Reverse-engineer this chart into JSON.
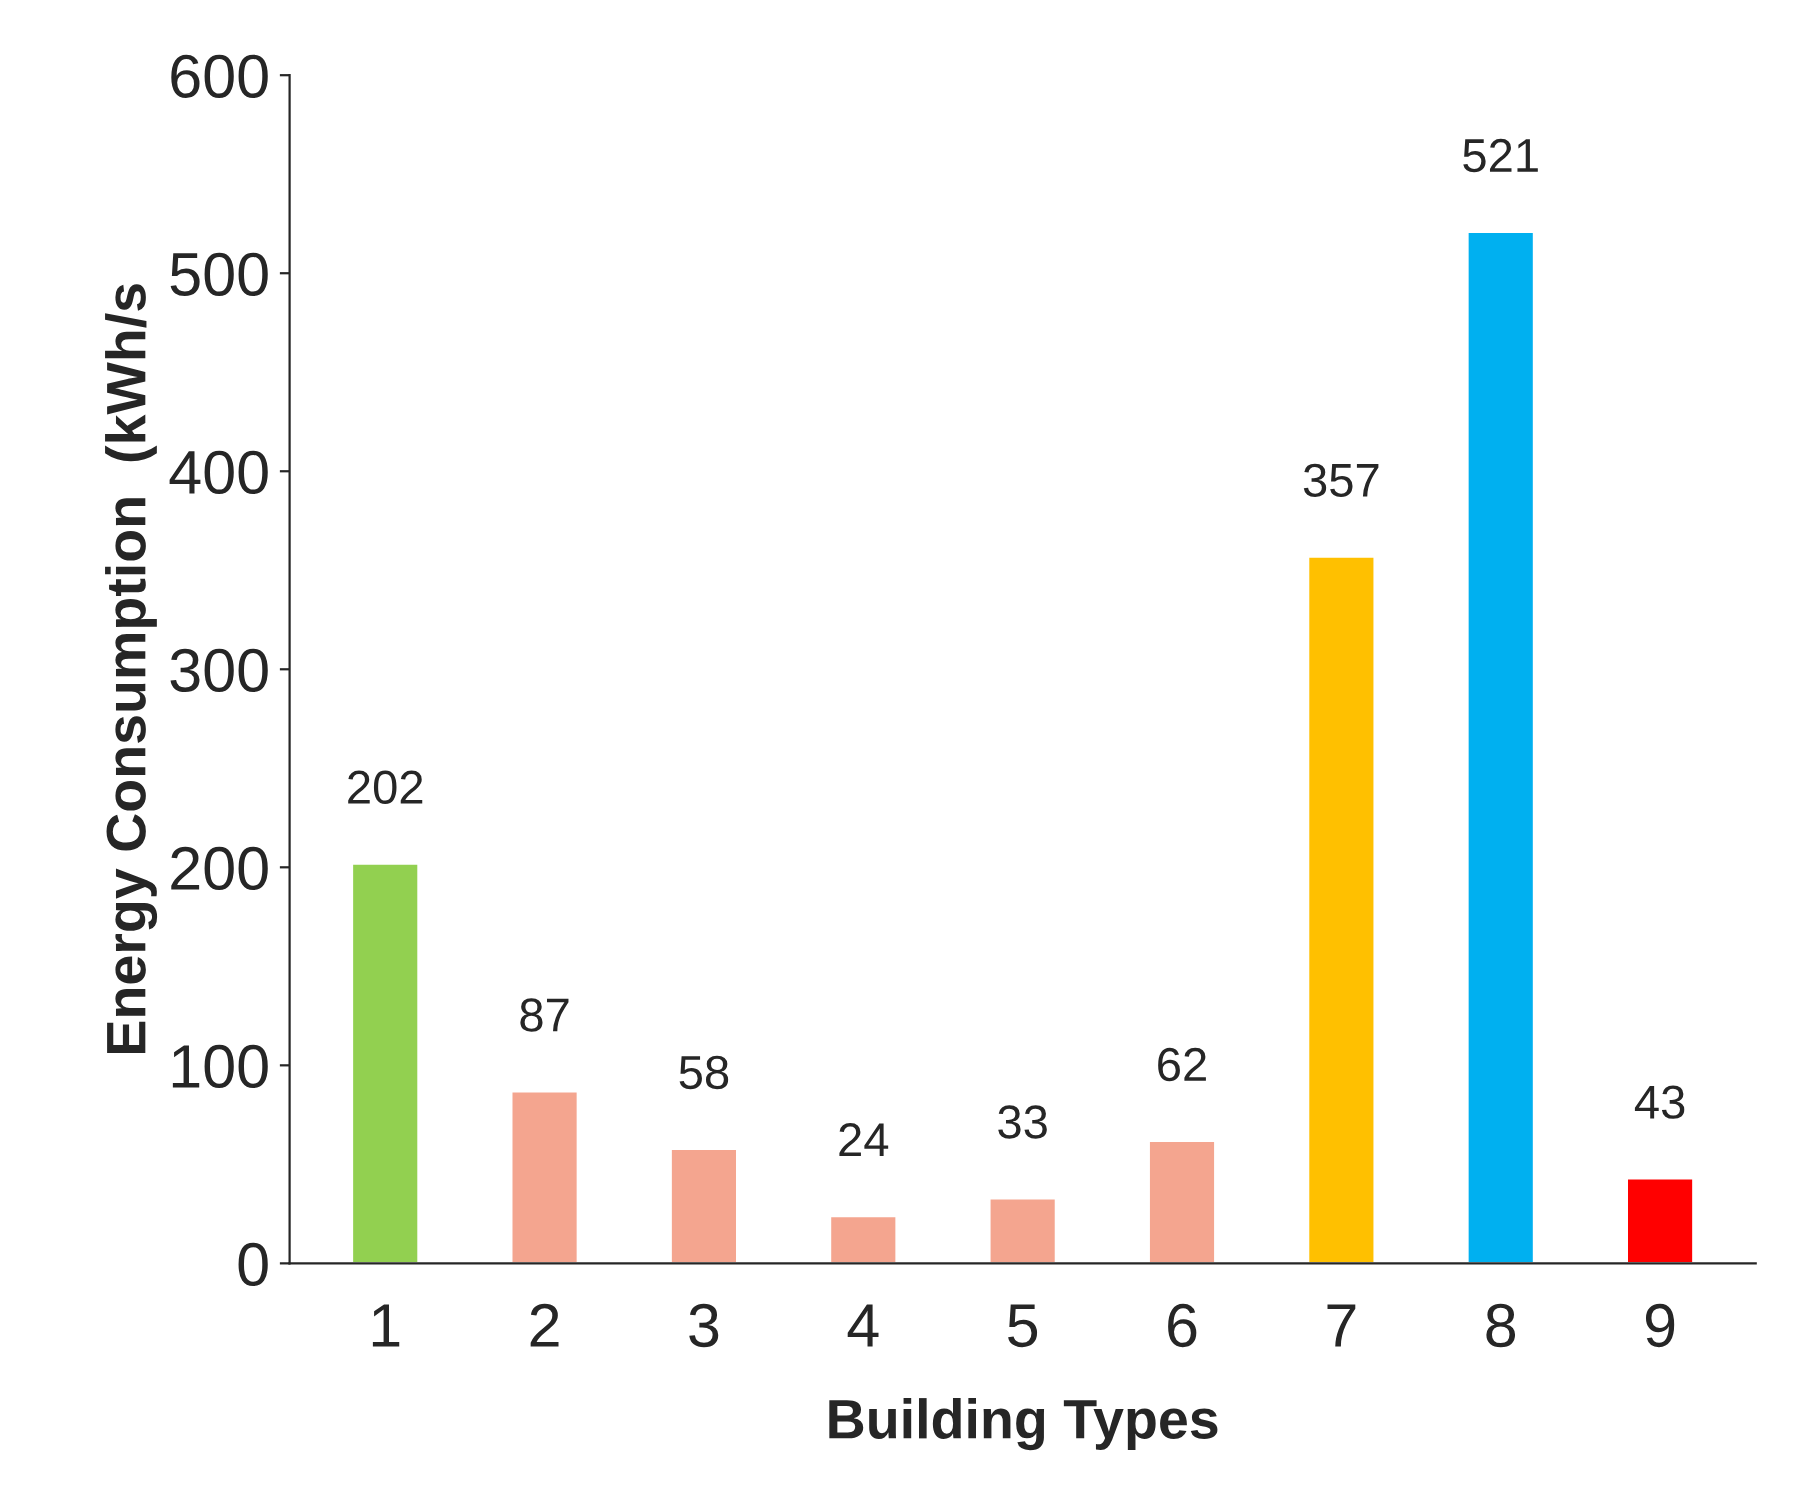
{
  "chart_data": {
    "type": "bar",
    "xlabel": "Building Types",
    "ylabel": "Energy Consumption  (kWh/s",
    "categories": [
      "1",
      "2",
      "3",
      "4",
      "5",
      "6",
      "7",
      "8",
      "9"
    ],
    "values": [
      202,
      87,
      58,
      24,
      33,
      62,
      357,
      521,
      43
    ],
    "colors": [
      "#92d050",
      "#f4a58f",
      "#f4a58f",
      "#f4a58f",
      "#f4a58f",
      "#f4a58f",
      "#ffc000",
      "#00b0f0",
      "#ff0000"
    ],
    "ylim": [
      0,
      600
    ],
    "yticks": [
      0,
      100,
      200,
      300,
      400,
      500,
      600
    ],
    "data_labels": true,
    "grid": false,
    "legend": false
  }
}
